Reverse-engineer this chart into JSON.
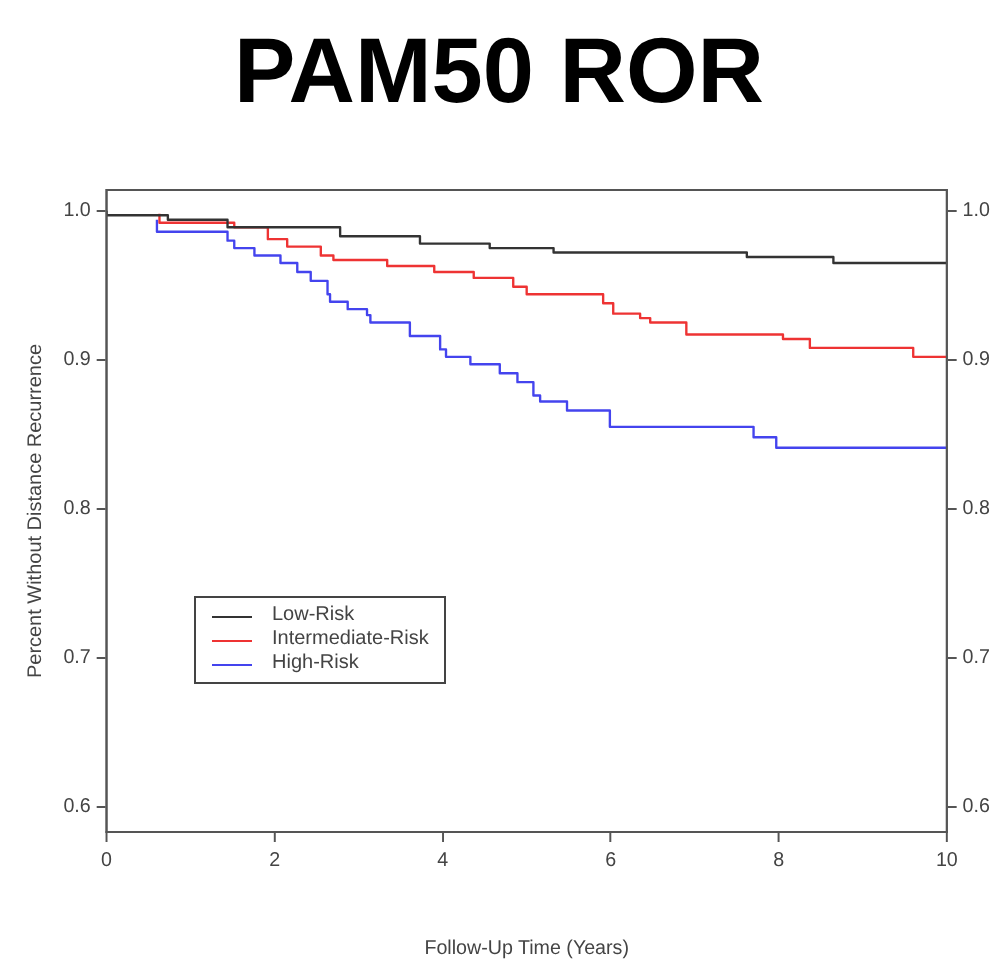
{
  "chart_data": {
    "type": "step",
    "title": "PAM50 ROR",
    "xlabel": "Follow-Up Time (Years)",
    "ylabel": "Percent Without Distance Recurrence",
    "xlim": [
      0,
      10
    ],
    "xticks": [
      0,
      2,
      4,
      6,
      8,
      10
    ],
    "ylim": [
      0.583,
      1.014
    ],
    "yticks": [
      {
        "value": 0.6,
        "label": "0.6"
      },
      {
        "value": 0.7,
        "label": "0.7"
      },
      {
        "value": 0.8,
        "label": "0.8"
      },
      {
        "value": 0.9,
        "label": "0.9"
      },
      {
        "value": 1,
        "label": "1.0"
      }
    ],
    "y2lim": [
      0.583,
      1.014
    ],
    "y2ticks": [
      {
        "value": 0.6,
        "label": "0.6"
      },
      {
        "value": 0.7,
        "label": "0.7"
      },
      {
        "value": 0.8,
        "label": "0.8"
      },
      {
        "value": 0.9,
        "label": "0.9"
      },
      {
        "value": 1,
        "label": "1.0"
      }
    ],
    "grid": false,
    "legend": "bottom left",
    "marker": "none",
    "line_style": "solid",
    "series": [
      {
        "name": "Low-Risk",
        "color": "#333333",
        "x": [
          0,
          0.73,
          1.44,
          2.78,
          3.73,
          4.56,
          5.32,
          7.62,
          8.65,
          8.95,
          10
        ],
        "values": [
          1.0,
          0.997,
          0.994,
          0.989,
          0.983,
          0.978,
          0.975,
          0.972,
          0.969,
          0.965,
          0.965
        ]
      },
      {
        "name": "Intermediate-Risk",
        "color": "#ee3333",
        "x": [
          0.63,
          1.52,
          1.92,
          2.15,
          2.55,
          2.7,
          3.34,
          3.9,
          4.37,
          4.84,
          5.0,
          5.91,
          6.03,
          6.35,
          6.47,
          6.9,
          8.05,
          8.37,
          9.6,
          10
        ],
        "values": [
          0.998,
          0.992,
          0.989,
          0.981,
          0.976,
          0.97,
          0.967,
          0.963,
          0.959,
          0.955,
          0.949,
          0.944,
          0.938,
          0.931,
          0.928,
          0.925,
          0.917,
          0.914,
          0.908,
          0.902
        ]
      },
      {
        "name": "High-Risk",
        "color": "#4444ee",
        "x": [
          0.6,
          1.44,
          1.52,
          1.76,
          2.07,
          2.27,
          2.43,
          2.63,
          2.66,
          2.87,
          3.1,
          3.14,
          3.61,
          3.97,
          4.04,
          4.33,
          4.68,
          4.89,
          5.08,
          5.16,
          5.48,
          5.99,
          7.7,
          7.97,
          8.79,
          10
        ],
        "values": [
          0.994,
          0.986,
          0.98,
          0.975,
          0.97,
          0.965,
          0.959,
          0.953,
          0.944,
          0.939,
          0.934,
          0.93,
          0.925,
          0.916,
          0.907,
          0.902,
          0.897,
          0.891,
          0.885,
          0.876,
          0.872,
          0.866,
          0.855,
          0.848,
          0.841,
          0.841
        ]
      }
    ]
  }
}
